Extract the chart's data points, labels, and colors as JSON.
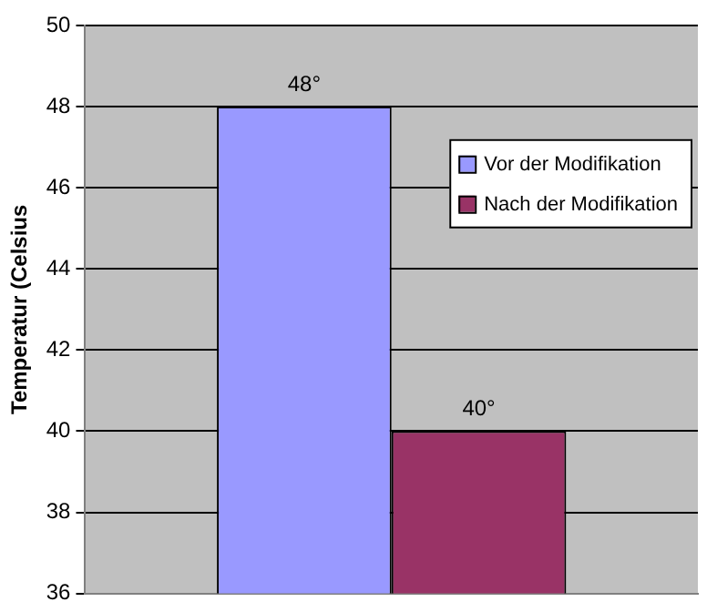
{
  "chart_data": {
    "type": "bar",
    "ylabel": "Temperatur (Celsius",
    "categories": [
      null
    ],
    "series": [
      {
        "name": "Vor der Modifikation",
        "color": "#9999ff",
        "values": [
          48
        ],
        "value_labels": [
          "48°"
        ]
      },
      {
        "name": "Nach der Modifikation",
        "color": "#993366",
        "values": [
          40
        ],
        "value_labels": [
          "40°"
        ]
      }
    ],
    "ylim": [
      36,
      50
    ],
    "yticks": [
      36,
      38,
      40,
      42,
      44,
      46,
      48,
      50
    ],
    "grid": "y",
    "legend": "right"
  }
}
